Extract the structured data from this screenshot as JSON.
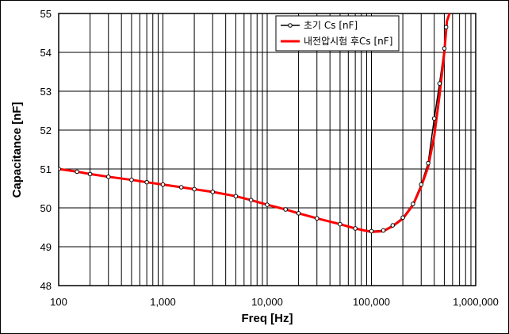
{
  "chart_data": {
    "type": "line",
    "xlabel": "Freq [Hz]",
    "ylabel": "Capacitance [nF]",
    "x_scale": "log",
    "xlim": [
      100,
      1000000
    ],
    "ylim": [
      48,
      55
    ],
    "grid": true,
    "legend_position": "top-right",
    "x_tick_labels": [
      "100",
      "1,000",
      "10,000",
      "100,000",
      "1,000,000"
    ],
    "y_tick_labels": [
      "48",
      "49",
      "50",
      "51",
      "52",
      "53",
      "54",
      "55"
    ],
    "series": [
      {
        "name": "초기 Cs [nF]",
        "color": "#000000",
        "marker": "circle",
        "x": [
          100,
          150,
          200,
          300,
          500,
          700,
          1000,
          1500,
          2000,
          3000,
          5000,
          7000,
          10000,
          15000,
          20000,
          30000,
          50000,
          70000,
          100000,
          130000,
          160000,
          200000,
          250000,
          300000,
          350000,
          400000,
          450000,
          500000,
          520000
        ],
        "y": [
          51.0,
          50.93,
          50.87,
          50.8,
          50.72,
          50.66,
          50.6,
          50.53,
          50.48,
          50.41,
          50.3,
          50.2,
          50.08,
          49.96,
          49.86,
          49.73,
          49.58,
          49.47,
          49.4,
          49.42,
          49.55,
          49.75,
          50.1,
          50.6,
          51.15,
          52.3,
          53.2,
          54.1,
          54.65
        ]
      },
      {
        "name": "내전압시험 후Cs [nF]",
        "color": "#ff0000",
        "marker": "none",
        "x": [
          100,
          150,
          200,
          300,
          500,
          700,
          1000,
          1500,
          2000,
          3000,
          5000,
          7000,
          10000,
          15000,
          20000,
          30000,
          50000,
          70000,
          100000,
          130000,
          160000,
          200000,
          250000,
          300000,
          350000,
          400000,
          450000,
          500000,
          530000,
          560000
        ],
        "y": [
          51.0,
          50.93,
          50.87,
          50.8,
          50.72,
          50.66,
          50.6,
          50.53,
          50.48,
          50.41,
          50.3,
          50.2,
          50.08,
          49.96,
          49.86,
          49.73,
          49.58,
          49.47,
          49.38,
          49.4,
          49.53,
          49.72,
          50.07,
          50.55,
          51.05,
          51.85,
          52.9,
          54.0,
          54.8,
          55.0
        ]
      }
    ]
  }
}
